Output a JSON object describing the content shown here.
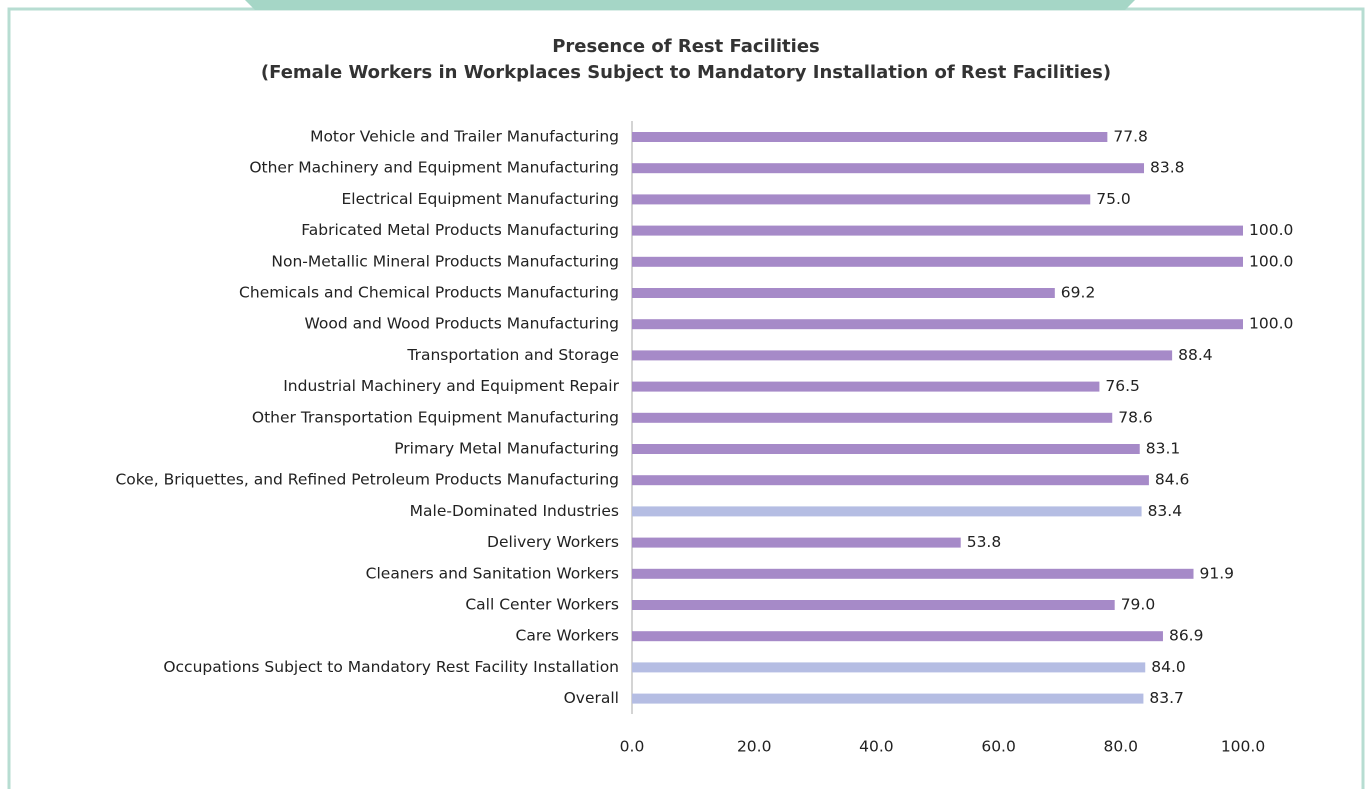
{
  "chart_data": {
    "type": "hbar",
    "title": "Presence of Rest Facilities",
    "subtitle": "(Female Workers in Workplaces Subject to Mandatory Installation of Rest Facilities)",
    "categories": [
      "Motor Vehicle and Trailer Manufacturing",
      "Other Machinery and Equipment Manufacturing",
      "Electrical Equipment Manufacturing",
      "Fabricated Metal Products Manufacturing",
      "Non-Metallic Mineral Products Manufacturing",
      "Chemicals and Chemical Products Manufacturing",
      "Wood and Wood Products Manufacturing",
      "Transportation and Storage",
      "Industrial Machinery and Equipment Repair",
      "Other Transportation Equipment Manufacturing",
      "Primary Metal Manufacturing",
      "Coke, Briquettes, and Refined Petroleum Products Manufacturing",
      "Male-Dominated Industries",
      "Delivery Workers",
      "Cleaners and Sanitation Workers",
      "Call Center Workers",
      "Care Workers",
      "Occupations Subject to Mandatory Rest Facility Installation",
      "Overall"
    ],
    "values": [
      77.8,
      83.8,
      75.0,
      100.0,
      100.0,
      69.2,
      100.0,
      88.4,
      76.5,
      78.6,
      83.1,
      84.6,
      83.4,
      53.8,
      91.9,
      79.0,
      86.9,
      84.0,
      83.7
    ],
    "value_labels": [
      "77.8",
      "83.8",
      "75.0",
      "100.0",
      "100.0",
      "69.2",
      "100.0",
      "88.4",
      "76.5",
      "78.6",
      "83.1",
      "84.6",
      "83.4",
      "53.8",
      "91.9",
      "79.0",
      "86.9",
      "84.0",
      "83.7"
    ],
    "colors": [
      "#a68ac8",
      "#a68ac8",
      "#a68ac8",
      "#a68ac8",
      "#a68ac8",
      "#a68ac8",
      "#a68ac8",
      "#a68ac8",
      "#a68ac8",
      "#a68ac8",
      "#a68ac8",
      "#a68ac8",
      "#b5bde3",
      "#a68ac8",
      "#a68ac8",
      "#a68ac8",
      "#a68ac8",
      "#b5bde3",
      "#b5bde3"
    ],
    "xlim": [
      0,
      100
    ],
    "xticks": [
      {
        "value": 0,
        "label": "0.0"
      },
      {
        "value": 20,
        "label": "20.0"
      },
      {
        "value": 40,
        "label": "40.0"
      },
      {
        "value": 60,
        "label": "60.0"
      },
      {
        "value": 80,
        "label": "80.0"
      },
      {
        "value": 100,
        "label": "100.0"
      }
    ],
    "grid": false
  }
}
